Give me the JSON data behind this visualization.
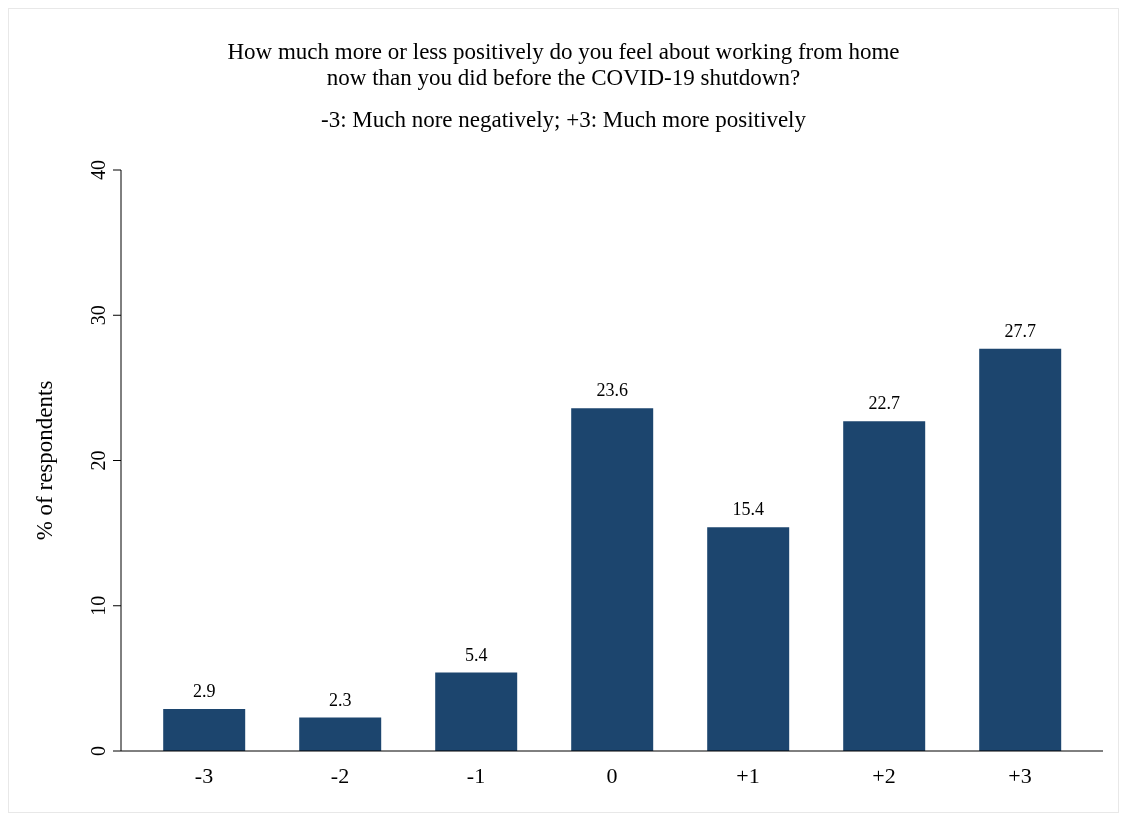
{
  "chart_data": {
    "type": "bar",
    "title": "How much more or less positively do you feel about working from home\nnow than you did before the COVID-19 shutdown?",
    "subtitle": "-3: Much nore negatively; +3: Much more positively",
    "ylabel": "% of respondents",
    "categories": [
      "-3",
      "-2",
      "-1",
      "0",
      "+1",
      "+2",
      "+3"
    ],
    "values": [
      2.9,
      2.3,
      5.4,
      23.6,
      15.4,
      22.7,
      27.7
    ],
    "color": "#1c456e",
    "ylim": [
      0,
      40
    ],
    "yticks": [
      0,
      10,
      20,
      30,
      40
    ],
    "grid": false,
    "data_labels": true,
    "legend": false
  }
}
